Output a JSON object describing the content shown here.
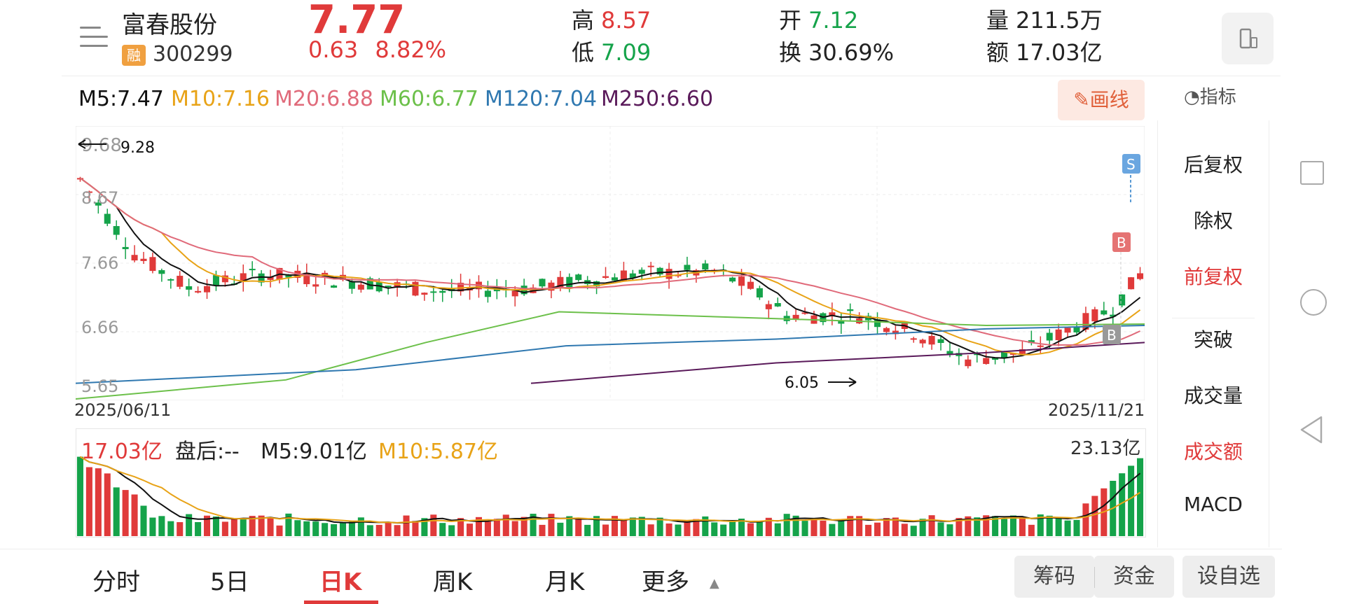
{
  "header": {
    "stock_name": "富春股份",
    "margin_badge": "融",
    "code": "300299",
    "price": "7.77",
    "change": "0.63",
    "change_pct": "8.82%",
    "high_label": "高",
    "high": "8.57",
    "low_label": "低",
    "low": "7.09",
    "open_label": "开",
    "open": "7.12",
    "turnover_label": "换",
    "turnover": "30.69%",
    "volume_label": "量",
    "volume": "211.5万",
    "amount_label": "额",
    "amount": "17.03亿"
  },
  "ma": {
    "m5": "M5:7.47",
    "m10": "M10:7.16",
    "m20": "M20:6.88",
    "m60": "M60:6.77",
    "m120": "M120:7.04",
    "m250": "M250:6.60"
  },
  "draw_button": "画线",
  "indicator_label": "指标",
  "chart": {
    "y_top": "9.68",
    "y_mid1": "8.67",
    "y_mid2": "7.66",
    "y_mid3": "6.66",
    "y_bottom": "5.65",
    "high_marker": "9.28",
    "low_marker": "6.05",
    "date_start": "2025/06/11",
    "date_end": "2025/11/21",
    "sell_badge": "S",
    "buy_badge": "B"
  },
  "volume": {
    "amount": "17.03亿",
    "after_hours": "盘后:--",
    "m5": "M5:9.01亿",
    "m10": "M10:5.87亿",
    "max": "23.13亿"
  },
  "side_panel": {
    "items": [
      "后复权",
      "除权",
      "前复权",
      "突破",
      "成交量",
      "成交额",
      "MACD"
    ]
  },
  "tabs": [
    "分时",
    "5日",
    "日K",
    "周K",
    "月K",
    "更多"
  ],
  "bottom_buttons": {
    "chips": "筹码",
    "funds": "资金",
    "watchlist": "设自选"
  },
  "colors": {
    "up": "#e03a3a",
    "down": "#15a34a",
    "m5": "#111111",
    "m10": "#e8a317",
    "m20": "#e06a7a",
    "m60": "#6cc04a",
    "m120": "#2f78b0",
    "m250": "#5a1a5a"
  }
}
